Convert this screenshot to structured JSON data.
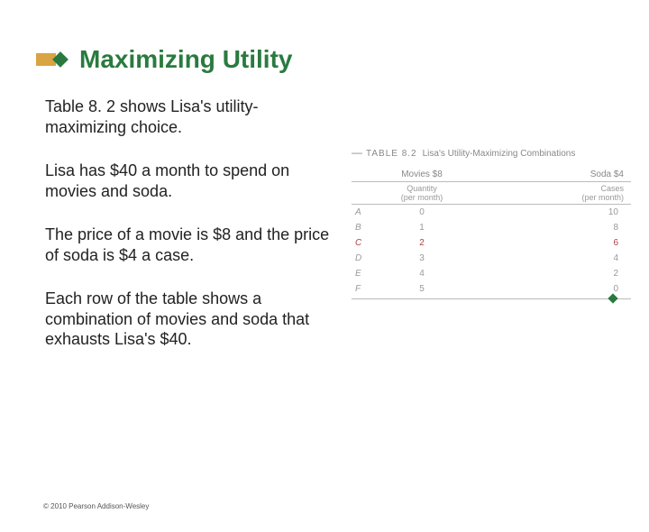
{
  "title": "Maximizing Utility",
  "paragraphs": {
    "p1": "Table 8. 2 shows Lisa's utility-maximizing choice.",
    "p2": "Lisa has $40 a month to spend on movies and soda.",
    "p3": "The price of a movie is $8 and the price of soda is $4 a case.",
    "p4": "Each row of the table shows a combination of movies and soda that exhausts Lisa's $40."
  },
  "table": {
    "label": "TABLE 8.2",
    "title": "Lisa's Utility-Maximizing Combinations",
    "col_movies": "Movies $8",
    "col_soda": "Soda $4",
    "sub_quantity": "Quantity",
    "sub_quantity_unit": "(per month)",
    "sub_cases": "Cases",
    "sub_cases_unit": "(per month)",
    "rows": [
      {
        "label": "A",
        "movies": "0",
        "soda": "10",
        "highlight": false
      },
      {
        "label": "B",
        "movies": "1",
        "soda": "8",
        "highlight": false
      },
      {
        "label": "C",
        "movies": "2",
        "soda": "6",
        "highlight": true
      },
      {
        "label": "D",
        "movies": "3",
        "soda": "4",
        "highlight": false
      },
      {
        "label": "E",
        "movies": "4",
        "soda": "2",
        "highlight": false
      },
      {
        "label": "F",
        "movies": "5",
        "soda": "0",
        "highlight": false
      }
    ]
  },
  "copyright": "© 2010 Pearson Addison-Wesley",
  "colors": {
    "accent_green": "#2a7a3f",
    "accent_gold": "#d9a441",
    "highlight_red": "#b04040",
    "text": "#222222",
    "muted": "#999999"
  }
}
